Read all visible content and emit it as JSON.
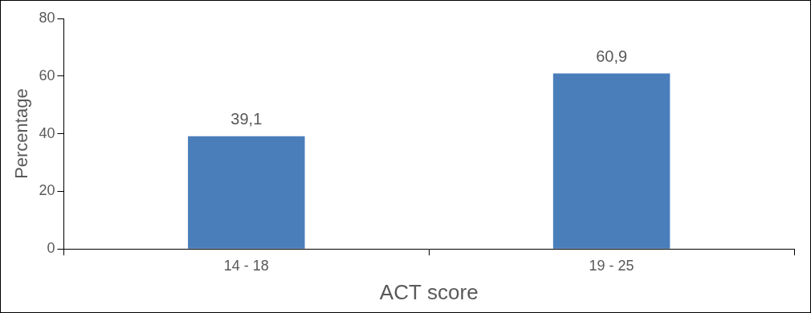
{
  "chart_data": {
    "type": "bar",
    "x_label": "ACT score",
    "y_label": "Percentage",
    "categories": [
      "14 - 18",
      "19 - 25"
    ],
    "values": [
      39.1,
      60.9
    ],
    "value_labels": [
      "39,1",
      "60,9"
    ],
    "color": "#4a7ebb",
    "ylim": [
      0,
      80
    ],
    "yticks": [
      0,
      20,
      40,
      60,
      80
    ],
    "grid": false,
    "data_labels": true
  }
}
